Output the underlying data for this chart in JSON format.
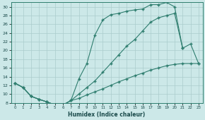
{
  "xlabel": "Humidex (Indice chaleur)",
  "bg_color": "#cce8e8",
  "grid_color": "#aacccc",
  "line_color": "#2e7d6e",
  "xlim": [
    -0.5,
    23.5
  ],
  "ylim": [
    8,
    31
  ],
  "xticks": [
    0,
    1,
    2,
    3,
    4,
    5,
    6,
    7,
    8,
    9,
    10,
    11,
    12,
    13,
    14,
    15,
    16,
    17,
    18,
    19,
    20,
    21,
    22,
    23
  ],
  "yticks": [
    8,
    10,
    12,
    14,
    16,
    18,
    20,
    22,
    24,
    26,
    28,
    30
  ],
  "curve_upper_x": [
    0,
    1,
    2,
    3,
    4,
    5,
    6,
    7,
    8,
    9,
    10,
    11,
    12,
    13,
    14,
    15,
    16,
    17,
    18,
    19,
    20,
    21
  ],
  "curve_upper_y": [
    12.5,
    11.5,
    9.5,
    8.8,
    8.2,
    7.5,
    7.5,
    8.5,
    13.5,
    17.0,
    23.5,
    27.0,
    28.2,
    28.5,
    29.0,
    29.3,
    29.5,
    30.5,
    30.5,
    31.0,
    30.0,
    20.5
  ],
  "curve_mid_x": [
    0,
    1,
    2,
    3,
    4,
    5,
    6,
    7,
    8,
    9,
    10,
    11,
    12,
    13,
    14,
    15,
    16,
    17,
    18,
    19,
    20,
    21,
    22,
    23
  ],
  "curve_mid_y": [
    12.5,
    11.5,
    9.5,
    8.8,
    8.2,
    7.5,
    7.5,
    8.5,
    10.0,
    11.5,
    13.0,
    15.0,
    17.0,
    19.0,
    21.0,
    22.5,
    24.5,
    26.5,
    27.5,
    28.0,
    28.5,
    20.5,
    21.5,
    17.0
  ],
  "curve_lower_x": [
    0,
    1,
    2,
    3,
    4,
    5,
    6,
    7,
    8,
    9,
    10,
    11,
    12,
    13,
    14,
    15,
    16,
    17,
    18,
    19,
    20,
    21,
    22,
    23
  ],
  "curve_lower_y": [
    12.5,
    11.5,
    9.5,
    8.8,
    8.2,
    7.5,
    7.5,
    8.5,
    9.0,
    9.8,
    10.5,
    11.2,
    12.0,
    12.8,
    13.5,
    14.2,
    14.8,
    15.5,
    16.0,
    16.5,
    16.8,
    17.0,
    17.0,
    17.0
  ]
}
